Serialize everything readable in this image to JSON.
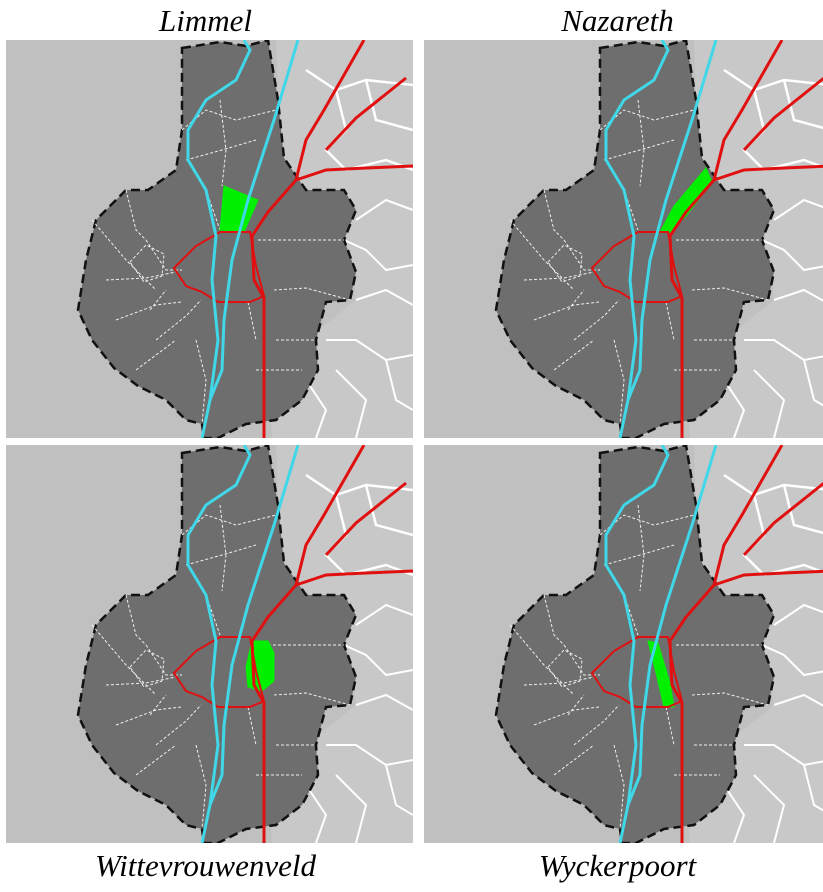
{
  "panels": [
    {
      "label": "Limmel",
      "highlight": "limmel"
    },
    {
      "label": "Nazareth",
      "highlight": "nazareth"
    },
    {
      "label": "Wittevrouwenveld",
      "highlight": "wittevrouwenveld"
    },
    {
      "label": "Wyckerpoort",
      "highlight": "wyckerpoort"
    }
  ],
  "colors": {
    "background": "#c0c0c0",
    "municipality": "#6e6e6e",
    "neighbourhood_lines": "#f0f0f0",
    "outer_areas": "#c8c8c8",
    "river": "#40d8e8",
    "roads": "#e01010",
    "border": "#111111",
    "highlight": "#00f000"
  }
}
